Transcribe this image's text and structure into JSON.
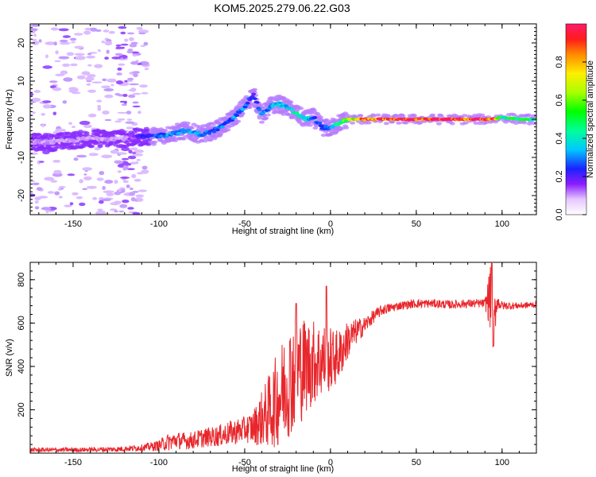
{
  "figure": {
    "title": "KOM5.2025.279.06.22.G03"
  },
  "chart_data": [
    {
      "type": "heatmap",
      "title": "KOM5.2025.279.06.22.G03",
      "xlabel": "Height of straight line (km)",
      "ylabel": "Frequency (Hz)",
      "xlim": [
        -175,
        120
      ],
      "ylim": [
        -25,
        25
      ],
      "x_ticks": [
        -150,
        -100,
        -50,
        0,
        50,
        100
      ],
      "y_ticks": [
        -20,
        -10,
        0,
        10,
        20
      ],
      "x_tick_labels": [
        "-150",
        "-100",
        "-50",
        "0",
        "50",
        "100"
      ],
      "y_tick_labels": [
        "-20",
        "-10",
        "0",
        "10",
        "20"
      ],
      "colorbar": {
        "label": "Normalized spectral amplitude",
        "range": [
          0,
          1
        ],
        "ticks": [
          0.0,
          0.2,
          0.4,
          0.6,
          0.8
        ],
        "tick_labels": [
          "0.0",
          "0.2",
          "0.4",
          "0.6",
          "0.8"
        ]
      },
      "ridge": {
        "description_points_x": [
          -175,
          -160,
          -140,
          -120,
          -105,
          -95,
          -85,
          -75,
          -68,
          -60,
          -55,
          -50,
          -45,
          -40,
          -35,
          -30,
          -25,
          -20,
          -15,
          -10,
          -5,
          0,
          5,
          10,
          20,
          40,
          60,
          80,
          95,
          100,
          110,
          120
        ],
        "frequency": [
          -6,
          -6,
          -5,
          -5,
          -4.5,
          -4,
          -3,
          -4,
          -3,
          -1,
          1,
          3.5,
          6.5,
          1,
          3.5,
          4,
          3,
          1.5,
          0,
          0.5,
          -2,
          -2.5,
          -1,
          0,
          0,
          0,
          0,
          0,
          0,
          0.5,
          0,
          0
        ],
        "amplitude": [
          0.1,
          0.1,
          0.1,
          0.1,
          0.25,
          0.3,
          0.3,
          0.3,
          0.25,
          0.3,
          0.3,
          0.3,
          0.2,
          0.3,
          0.3,
          0.35,
          0.35,
          0.45,
          0.4,
          0.3,
          0.25,
          0.3,
          0.45,
          0.6,
          0.85,
          0.95,
          0.95,
          0.95,
          0.9,
          0.45,
          0.5,
          0.4
        ]
      }
    },
    {
      "type": "line",
      "xlabel": "Height of straight line (km)",
      "ylabel": "SNR (v/v)",
      "xlim": [
        -175,
        120
      ],
      "ylim": [
        0,
        880
      ],
      "x_ticks": [
        -150,
        -100,
        -50,
        0,
        50,
        100
      ],
      "y_ticks": [
        200,
        400,
        600,
        800
      ],
      "x_tick_labels": [
        "-150",
        "-100",
        "-50",
        "0",
        "50",
        "100"
      ],
      "y_tick_labels": [
        "200",
        "400",
        "600",
        "800"
      ],
      "series": [
        {
          "name": "SNR",
          "color": "#e8262b",
          "x": [
            -175,
            -150,
            -125,
            -110,
            -100,
            -95,
            -90,
            -85,
            -80,
            -75,
            -70,
            -65,
            -60,
            -55,
            -50,
            -45,
            -40,
            -35,
            -30,
            -25,
            -20,
            -15,
            -10,
            -5,
            0,
            5,
            10,
            15,
            20,
            25,
            30,
            40,
            50,
            60,
            70,
            80,
            90,
            93,
            95,
            97,
            100,
            110,
            120
          ],
          "y": [
            15,
            15,
            18,
            25,
            35,
            50,
            60,
            55,
            60,
            70,
            75,
            80,
            90,
            100,
            110,
            120,
            160,
            200,
            260,
            330,
            380,
            400,
            420,
            430,
            430,
            450,
            520,
            560,
            590,
            630,
            660,
            680,
            690,
            690,
            685,
            690,
            690,
            720,
            600,
            700,
            680,
            680,
            685
          ],
          "noise_amplitude": [
            10,
            10,
            12,
            15,
            25,
            40,
            40,
            40,
            40,
            45,
            45,
            50,
            55,
            60,
            60,
            80,
            130,
            180,
            230,
            260,
            280,
            230,
            200,
            180,
            150,
            120,
            90,
            60,
            40,
            30,
            25,
            20,
            20,
            20,
            20,
            20,
            20,
            150,
            150,
            40,
            20,
            15,
            15
          ]
        }
      ]
    }
  ]
}
